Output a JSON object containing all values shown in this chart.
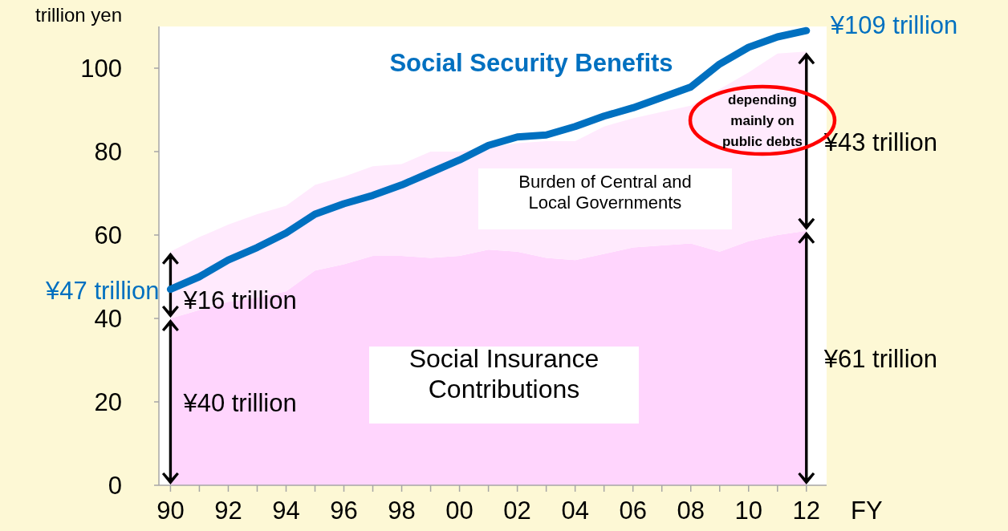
{
  "chart_data": {
    "type": "area",
    "stacked": true,
    "legend": false,
    "grid": false,
    "xlabel": "FY",
    "ylabel": "trillion yen",
    "x": [
      1990,
      1991,
      1992,
      1993,
      1994,
      1995,
      1996,
      1997,
      1998,
      1999,
      2000,
      2001,
      2002,
      2003,
      2004,
      2005,
      2006,
      2007,
      2008,
      2009,
      2010,
      2011,
      2012
    ],
    "xlim": [
      1989.6,
      2012.7
    ],
    "xticks": [
      {
        "value": 1990,
        "label": "90"
      },
      {
        "value": 1991,
        "label": null
      },
      {
        "value": 1992,
        "label": "92"
      },
      {
        "value": 1993,
        "label": null
      },
      {
        "value": 1994,
        "label": "94"
      },
      {
        "value": 1995,
        "label": null
      },
      {
        "value": 1996,
        "label": "96"
      },
      {
        "value": 1997,
        "label": null
      },
      {
        "value": 1998,
        "label": "98"
      },
      {
        "value": 1999,
        "label": null
      },
      {
        "value": 2000,
        "label": "00"
      },
      {
        "value": 2001,
        "label": null
      },
      {
        "value": 2002,
        "label": "02"
      },
      {
        "value": 2003,
        "label": null
      },
      {
        "value": 2004,
        "label": "04"
      },
      {
        "value": 2005,
        "label": null
      },
      {
        "value": 2006,
        "label": "06"
      },
      {
        "value": 2007,
        "label": null
      },
      {
        "value": 2008,
        "label": "08"
      },
      {
        "value": 2009,
        "label": null
      },
      {
        "value": 2010,
        "label": "10"
      },
      {
        "value": 2011,
        "label": null
      },
      {
        "value": 2012,
        "label": "12"
      }
    ],
    "ylim": [
      0,
      110
    ],
    "yticks": [
      0,
      20,
      40,
      60,
      80,
      100
    ],
    "series": [
      {
        "name": "Social Insurance Contributions",
        "type": "area",
        "color": "#ffd5fd",
        "values": [
          40,
          42,
          44,
          45,
          46.5,
          51.5,
          53,
          55,
          55,
          54.5,
          55,
          56.5,
          56,
          54.5,
          54,
          55.5,
          57,
          57.5,
          58,
          56,
          58.5,
          60,
          61
        ]
      },
      {
        "name": "Burden of Central and Local Governments",
        "type": "area",
        "color": "#ffeafd",
        "values": [
          16,
          17.5,
          18.5,
          20,
          20.5,
          20.5,
          21,
          21.5,
          22,
          25.5,
          25,
          24.5,
          26,
          28,
          28.5,
          30.5,
          31,
          32,
          33,
          39,
          40.5,
          43.5,
          43
        ]
      },
      {
        "name": "Social Security Benefits",
        "type": "line",
        "color": "#0070c0",
        "values": [
          47,
          50,
          54,
          57,
          60.5,
          65,
          67.5,
          69.5,
          72,
          75,
          78,
          81.5,
          83.5,
          84,
          86,
          88.5,
          90.5,
          93,
          95.5,
          101,
          105,
          107.5,
          109
        ]
      }
    ],
    "annotations": [
      "¥47 trillion",
      "¥109 trillion",
      "¥16 trillion",
      "¥40 trillion",
      "¥43 trillion",
      "¥61 trillion",
      "depending mainly on public debts"
    ]
  }
}
